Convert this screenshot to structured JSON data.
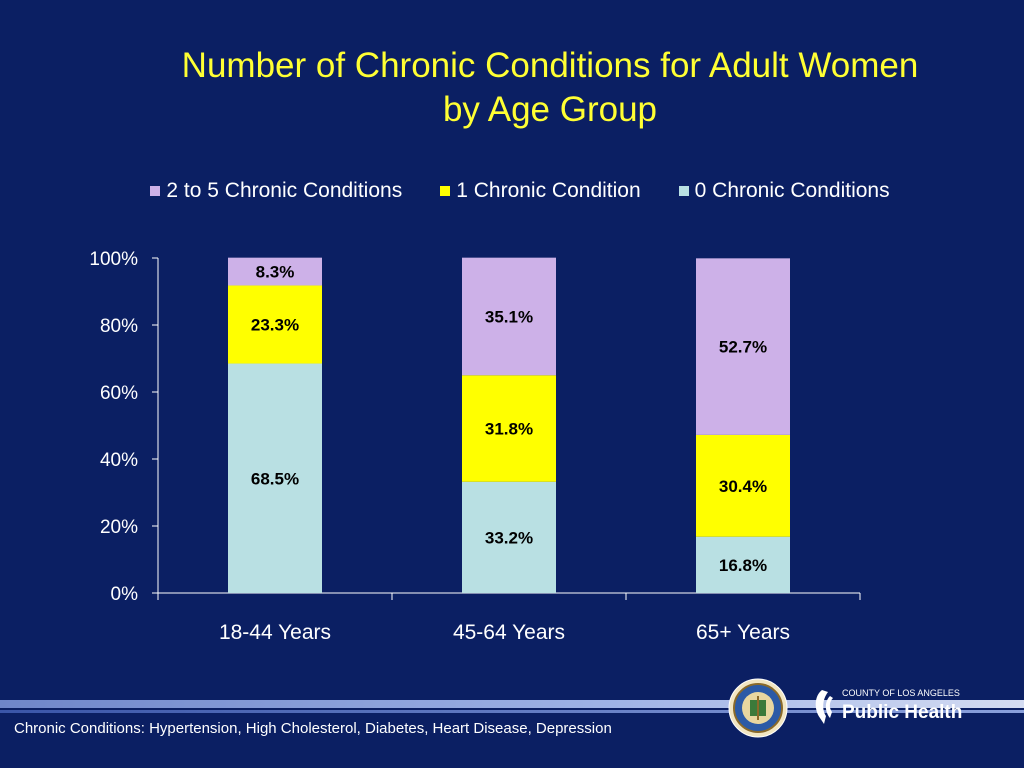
{
  "title_line1": "Number of Chronic Conditions for Adult Women",
  "title_line2": "by Age Group",
  "footnote": "Chronic Conditions: Hypertension, High Cholesterol, Diabetes, Heart Disease, Depression",
  "logo": {
    "county_text": "COUNTY OF LOS ANGELES",
    "name_text": "Public Health"
  },
  "colors": {
    "background": "#0b1f63",
    "title": "#ffff33",
    "text": "#ffffff"
  },
  "chart_data": {
    "type": "bar",
    "stacked": true,
    "categories": [
      "18-44 Years",
      "45-64 Years",
      "65+ Years"
    ],
    "series": [
      {
        "name": "0 Chronic Conditions",
        "color": "#b9e0e3",
        "values": [
          68.5,
          33.2,
          16.8
        ],
        "labels": [
          "68.5%",
          "33.2%",
          "16.8%"
        ]
      },
      {
        "name": "1 Chronic Condition",
        "color": "#ffff00",
        "values": [
          23.3,
          31.8,
          30.4
        ],
        "labels": [
          "23.3%",
          "31.8%",
          "30.4%"
        ]
      },
      {
        "name": "2 to 5 Chronic Conditions",
        "color": "#cdb1e8",
        "values": [
          8.3,
          35.1,
          52.7
        ],
        "labels": [
          "8.3%",
          "35.1%",
          "52.7%"
        ]
      }
    ],
    "legend_order": [
      "2 to 5 Chronic Conditions",
      "1 Chronic Condition",
      "0 Chronic Conditions"
    ],
    "legend_position": "top",
    "yticks": [
      "0%",
      "20%",
      "40%",
      "60%",
      "80%",
      "100%"
    ],
    "ylim": [
      0,
      100
    ],
    "grid": false
  }
}
